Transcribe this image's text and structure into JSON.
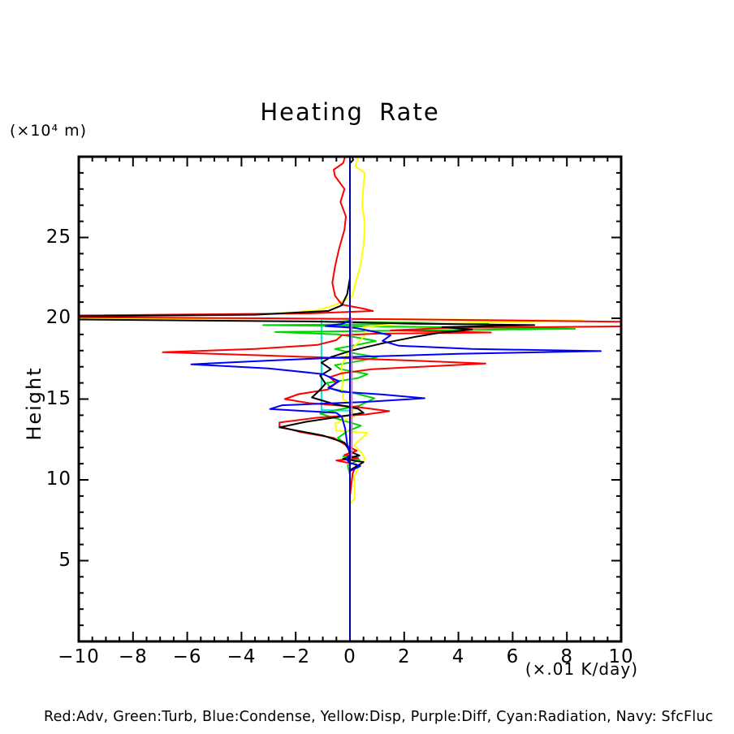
{
  "page": {
    "background": "#ffffff"
  },
  "chart_data": {
    "type": "line",
    "orientation": "vertical-profile (x = value, y = height)",
    "title": "Heating Rate",
    "ylabel": "Height",
    "y_axis_unit": "(×10⁴ m)",
    "x_axis_unit": "(×.01 K/day)",
    "legend_text": "Red:Adv, Green:Turb, Blue:Condense, Yellow:Disp, Purple:Diff, Cyan:Radiation, Navy: SfcFluc",
    "legend_position": "bottom",
    "grid": false,
    "axis_color": "#000000",
    "xlim": [
      -10,
      10
    ],
    "ylim": [
      0,
      30
    ],
    "x_major_ticks": [
      -10,
      -8,
      -6,
      -4,
      -2,
      0,
      2,
      4,
      6,
      8,
      10
    ],
    "x_tick_labels": [
      "−10",
      "−8",
      "−6",
      "−4",
      "−2",
      "0",
      "2",
      "4",
      "6",
      "8",
      "10"
    ],
    "x_minor_step": 0.5,
    "y_major_ticks": [
      5,
      10,
      15,
      20,
      25
    ],
    "y_tick_labels": [
      "5",
      "10",
      "15",
      "20",
      "25"
    ],
    "y_minor_step": 1,
    "series": [
      {
        "name": "radiation",
        "label": "Radiation",
        "color_name": "cyan",
        "color": "#00e5e5",
        "points": [
          [
            0,
            13.9
          ],
          [
            0,
            14.28
          ],
          [
            -1.05,
            14.32
          ],
          [
            -1.05,
            19.93
          ],
          [
            0,
            19.98
          ],
          [
            0,
            20.3
          ]
        ]
      },
      {
        "name": "turb",
        "label": "Turb",
        "color_name": "green",
        "color": "#00d400",
        "points": [
          [
            0,
            10.3
          ],
          [
            -0.08,
            10.9
          ],
          [
            0.35,
            11.25
          ],
          [
            -0.25,
            11.45
          ],
          [
            0,
            11.7
          ],
          [
            -0.15,
            12.2
          ],
          [
            -0.45,
            12.6
          ],
          [
            -0.1,
            13.0
          ],
          [
            0.4,
            13.35
          ],
          [
            -0.3,
            13.7
          ],
          [
            -1.1,
            14.1
          ],
          [
            -0.4,
            14.35
          ],
          [
            0.35,
            14.6
          ],
          [
            0.9,
            15.05
          ],
          [
            0.2,
            15.35
          ],
          [
            -0.7,
            15.65
          ],
          [
            -0.85,
            16.0
          ],
          [
            0.3,
            16.3
          ],
          [
            0.65,
            16.55
          ],
          [
            -0.35,
            16.85
          ],
          [
            -0.55,
            17.1
          ],
          [
            0.5,
            17.4
          ],
          [
            1.0,
            17.6
          ],
          [
            0.1,
            17.85
          ],
          [
            -0.55,
            18.1
          ],
          [
            0.4,
            18.4
          ],
          [
            0.95,
            18.6
          ],
          [
            0.3,
            18.8
          ],
          [
            -0.4,
            19.0
          ],
          [
            -2.75,
            19.15
          ],
          [
            8.3,
            19.35
          ],
          [
            -3.2,
            19.58
          ],
          [
            5.1,
            19.68
          ],
          [
            -0.5,
            19.78
          ],
          [
            0,
            19.85
          ]
        ]
      },
      {
        "name": "disp",
        "label": "Disp",
        "color_name": "yellow",
        "color": "#ffff00",
        "points": [
          [
            0,
            8.55
          ],
          [
            0.18,
            8.85
          ],
          [
            0.15,
            10.2
          ],
          [
            0.38,
            10.95
          ],
          [
            0.55,
            11.3
          ],
          [
            0.42,
            11.7
          ],
          [
            0.15,
            12.15
          ],
          [
            0.65,
            12.9
          ],
          [
            -0.5,
            13.05
          ],
          [
            -0.55,
            13.5
          ],
          [
            0.15,
            13.9
          ],
          [
            0.1,
            14.5
          ],
          [
            -0.25,
            15.0
          ],
          [
            -0.3,
            15.6
          ],
          [
            -0.25,
            16.3
          ],
          [
            -0.32,
            17.0
          ],
          [
            -0.15,
            17.7
          ],
          [
            0.15,
            18.25
          ],
          [
            0.45,
            18.75
          ],
          [
            0.6,
            19.15
          ],
          [
            0.5,
            19.45
          ],
          [
            1.8,
            19.65
          ],
          [
            8.6,
            19.87
          ],
          [
            2.0,
            19.94
          ],
          [
            -10.4,
            20.03
          ],
          [
            -10.4,
            20.12
          ],
          [
            -2.8,
            20.28
          ],
          [
            -1.2,
            20.5
          ],
          [
            -0.5,
            20.85
          ],
          [
            0.1,
            21.4
          ],
          [
            0.2,
            22.2
          ],
          [
            0.38,
            23.2
          ],
          [
            0.5,
            24.5
          ],
          [
            0.55,
            25.8
          ],
          [
            0.45,
            27.0
          ],
          [
            0.5,
            28.3
          ],
          [
            0.55,
            29.0
          ],
          [
            0.2,
            29.4
          ],
          [
            0.3,
            30
          ]
        ]
      },
      {
        "name": "adv",
        "label": "Adv",
        "color_name": "red",
        "color": "#ff0000",
        "points": [
          [
            0,
            9.0
          ],
          [
            0.1,
            10.4
          ],
          [
            0.25,
            10.95
          ],
          [
            -0.5,
            11.2
          ],
          [
            0.3,
            11.35
          ],
          [
            -0.2,
            11.55
          ],
          [
            0.25,
            11.8
          ],
          [
            -0.1,
            12.1
          ],
          [
            -0.6,
            12.6
          ],
          [
            -1.8,
            12.95
          ],
          [
            -2.6,
            13.3
          ],
          [
            -2.6,
            13.55
          ],
          [
            -1.2,
            13.85
          ],
          [
            0.6,
            14.05
          ],
          [
            1.45,
            14.25
          ],
          [
            0.3,
            14.5
          ],
          [
            -1.5,
            14.75
          ],
          [
            -2.4,
            15.0
          ],
          [
            -1.9,
            15.3
          ],
          [
            -0.8,
            15.6
          ],
          [
            -0.5,
            16.0
          ],
          [
            -0.75,
            16.35
          ],
          [
            -0.3,
            16.6
          ],
          [
            0.8,
            16.85
          ],
          [
            3.2,
            17.05
          ],
          [
            5.0,
            17.2
          ],
          [
            2.0,
            17.4
          ],
          [
            -0.5,
            17.55
          ],
          [
            -3.5,
            17.72
          ],
          [
            -6.9,
            17.9
          ],
          [
            -3.5,
            18.1
          ],
          [
            -1.2,
            18.35
          ],
          [
            -0.5,
            18.65
          ],
          [
            -0.3,
            18.95
          ],
          [
            1.0,
            19.05
          ],
          [
            5.2,
            19.12
          ],
          [
            1.5,
            19.25
          ],
          [
            3.5,
            19.4
          ],
          [
            10.4,
            19.5
          ],
          [
            10.4,
            19.78
          ],
          [
            3.0,
            19.92
          ],
          [
            -3.0,
            20.0
          ],
          [
            -10.4,
            20.07
          ],
          [
            -10.4,
            20.17
          ],
          [
            -1.5,
            20.3
          ],
          [
            0.85,
            20.45
          ],
          [
            0.5,
            20.6
          ],
          [
            -0.3,
            20.85
          ],
          [
            -0.55,
            21.4
          ],
          [
            -0.65,
            22.2
          ],
          [
            -0.55,
            23.2
          ],
          [
            -0.4,
            24.3
          ],
          [
            -0.2,
            25.5
          ],
          [
            -0.15,
            26.3
          ],
          [
            -0.35,
            27.2
          ],
          [
            -0.2,
            28.0
          ],
          [
            -0.55,
            28.8
          ],
          [
            -0.6,
            29.2
          ],
          [
            -0.25,
            29.6
          ],
          [
            -0.18,
            30
          ]
        ]
      },
      {
        "name": "black_unlabeled",
        "label": "",
        "color_name": "black",
        "color": "#000000",
        "points": [
          [
            0,
            10.6
          ],
          [
            0.5,
            11.1
          ],
          [
            -0.25,
            11.3
          ],
          [
            0.35,
            11.5
          ],
          [
            0,
            11.75
          ],
          [
            -0.2,
            12.3
          ],
          [
            -1.0,
            12.75
          ],
          [
            -2.6,
            13.25
          ],
          [
            -1.6,
            13.6
          ],
          [
            -0.4,
            13.9
          ],
          [
            0.5,
            14.15
          ],
          [
            0.3,
            14.4
          ],
          [
            -0.6,
            14.7
          ],
          [
            -1.4,
            15.1
          ],
          [
            -1.15,
            15.5
          ],
          [
            -0.9,
            15.95
          ],
          [
            -1.1,
            16.45
          ],
          [
            -0.7,
            16.85
          ],
          [
            -1.05,
            17.25
          ],
          [
            -0.7,
            17.6
          ],
          [
            0.05,
            18.0
          ],
          [
            1.2,
            18.45
          ],
          [
            2.4,
            18.85
          ],
          [
            3.3,
            19.1
          ],
          [
            4.5,
            19.3
          ],
          [
            3.4,
            19.45
          ],
          [
            6.8,
            19.58
          ],
          [
            2.0,
            19.68
          ],
          [
            -1.2,
            19.8
          ],
          [
            -10.4,
            19.93
          ],
          [
            -10.4,
            20.12
          ],
          [
            -3.5,
            20.22
          ],
          [
            -0.8,
            20.45
          ],
          [
            -0.3,
            20.8
          ],
          [
            -0.1,
            21.5
          ],
          [
            0,
            22.5
          ],
          [
            0,
            29.6
          ],
          [
            0.12,
            29.8
          ],
          [
            0.08,
            30
          ]
        ]
      },
      {
        "name": "condense",
        "label": "Condense",
        "color_name": "blue",
        "color": "#0000ff",
        "points": [
          [
            0,
            0
          ],
          [
            0,
            10.55
          ],
          [
            0.38,
            10.85
          ],
          [
            0,
            11.05
          ],
          [
            -0.15,
            11.3
          ],
          [
            0,
            11.55
          ],
          [
            -0.1,
            12.2
          ],
          [
            -0.18,
            13.2
          ],
          [
            -0.3,
            13.9
          ],
          [
            -0.5,
            14.15
          ],
          [
            -2.95,
            14.38
          ],
          [
            -2.5,
            14.62
          ],
          [
            0.5,
            14.82
          ],
          [
            2.75,
            15.05
          ],
          [
            1.2,
            15.28
          ],
          [
            -0.3,
            15.45
          ],
          [
            -0.8,
            15.7
          ],
          [
            -0.4,
            16.1
          ],
          [
            -1.0,
            16.55
          ],
          [
            -3.0,
            16.9
          ],
          [
            -5.85,
            17.15
          ],
          [
            -3.0,
            17.38
          ],
          [
            0,
            17.6
          ],
          [
            4.0,
            17.8
          ],
          [
            9.25,
            17.97
          ],
          [
            4.5,
            18.1
          ],
          [
            1.8,
            18.3
          ],
          [
            1.2,
            18.6
          ],
          [
            1.5,
            18.95
          ],
          [
            0.8,
            19.2
          ],
          [
            0.2,
            19.4
          ],
          [
            -0.9,
            19.52
          ],
          [
            -0.3,
            19.65
          ],
          [
            0,
            19.85
          ],
          [
            0,
            30
          ]
        ]
      },
      {
        "name": "diff",
        "label": "Diff",
        "color_name": "purple",
        "color": "#b473e8",
        "points": [
          [
            0,
            11.2
          ],
          [
            0.07,
            11.6
          ],
          [
            0.07,
            19.9
          ],
          [
            0,
            20.1
          ]
        ]
      },
      {
        "name": "sfcfluc",
        "label": "SfcFluc",
        "color_name": "navy",
        "color": "#000099",
        "points": [
          [
            0,
            0
          ],
          [
            0,
            30
          ]
        ]
      }
    ]
  }
}
